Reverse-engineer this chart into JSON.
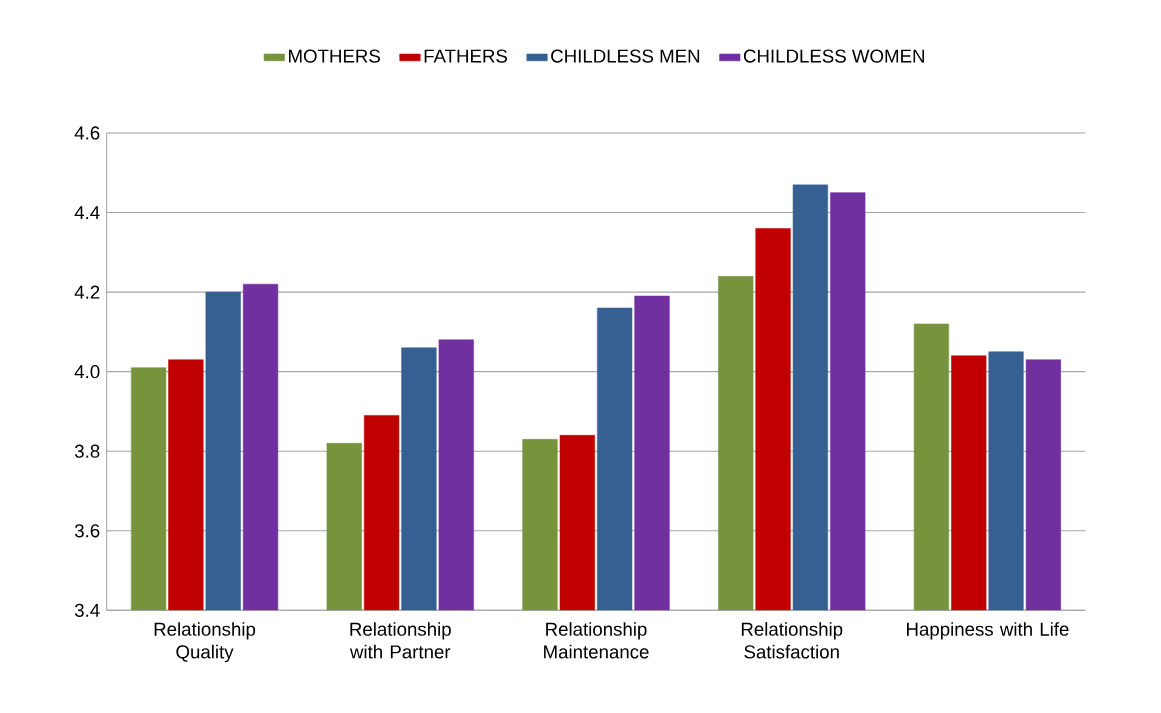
{
  "chart_data": {
    "type": "bar",
    "categories": [
      "Relationship Quality",
      "Relationship with Partner",
      "Relationship Maintenance",
      "Relationship Satisfaction",
      "Happiness with Life"
    ],
    "series": [
      {
        "name": "MOTHERS",
        "color": "#77933c",
        "values": [
          4.01,
          3.82,
          3.83,
          4.24,
          4.12
        ]
      },
      {
        "name": "FATHERS",
        "color": "#c00000",
        "values": [
          4.03,
          3.89,
          3.84,
          4.36,
          4.04
        ]
      },
      {
        "name": "CHILDLESS MEN",
        "color": "#376092",
        "values": [
          4.2,
          4.06,
          4.16,
          4.47,
          4.05
        ]
      },
      {
        "name": "CHILDLESS WOMEN",
        "color": "#7030a0",
        "values": [
          4.22,
          4.08,
          4.19,
          4.45,
          4.03
        ]
      }
    ],
    "ylim": [
      3.4,
      4.6
    ],
    "yticks": [
      {
        "value": 3.4,
        "label": "3.4"
      },
      {
        "value": 3.6,
        "label": "3.6"
      },
      {
        "value": 3.8,
        "label": "3.8"
      },
      {
        "value": 4.0,
        "label": "4.0"
      },
      {
        "value": 4.2,
        "label": "4.2"
      },
      {
        "value": 4.4,
        "label": "4.4"
      },
      {
        "value": 4.6,
        "label": "4.6"
      }
    ],
    "grid": "y",
    "legend": "top"
  }
}
